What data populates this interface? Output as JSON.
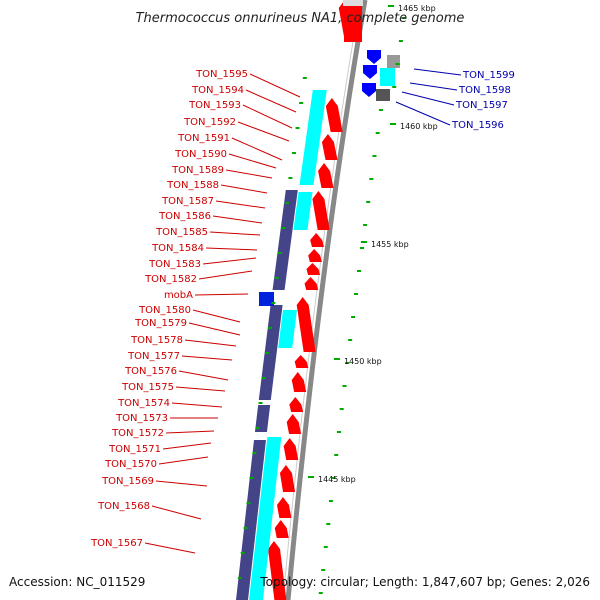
{
  "title": "Thermococcus onnurineus NA1, complete genome",
  "footer": {
    "accession": "Accession: NC_011529",
    "topology": "Topology: circular; Length: 1,847,607 bp; Genes: 2,026"
  },
  "colors": {
    "forward_gene": "#ff0000",
    "reverse_gene": "#0000ff",
    "rna_feature": "#00ffff",
    "dark_feature": "#444488",
    "grey_feature": "#999999",
    "tick_green": "#00aa00",
    "left_label": "#cc0000",
    "right_label": "#0000aa"
  },
  "kbp_ticks": [
    "1465 kbp",
    "1460 kbp",
    "1455 kbp",
    "1450 kbp",
    "1445 kbp"
  ],
  "left_labels": [
    "TON_1595",
    "TON_1594",
    "TON_1593",
    "TON_1592",
    "TON_1591",
    "TON_1590",
    "TON_1589",
    "TON_1588",
    "TON_1587",
    "TON_1586",
    "TON_1585",
    "TON_1584",
    "TON_1583",
    "TON_1582",
    "mobA",
    "TON_1580",
    "TON_1579",
    "TON_1578",
    "TON_1577",
    "TON_1576",
    "TON_1575",
    "TON_1574",
    "TON_1573",
    "TON_1572",
    "TON_1571",
    "TON_1570",
    "TON_1569",
    "TON_1568",
    "TON_1567"
  ],
  "right_labels": [
    "TON_1599",
    "TON_1598",
    "TON_1597",
    "TON_1596"
  ]
}
